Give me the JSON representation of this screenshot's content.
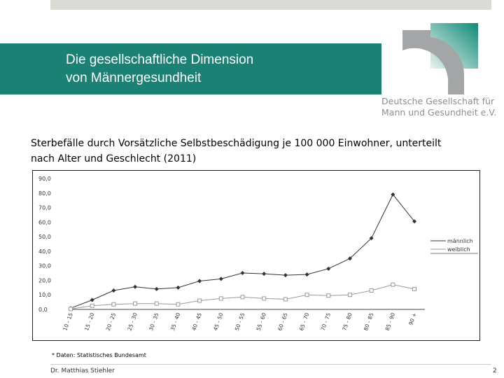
{
  "slide": {
    "title_line1": "Die gesellschaftliche Dimension",
    "title_line2": "von Männergesundheit",
    "org_line1": "Deutsche Gesellschaft für",
    "org_line2": "Mann und Gesundheit e.V.",
    "subtitle": "Sterbefälle durch Vorsätzliche Selbstbeschädigung je 100 000 Einwohner, unterteilt nach Alter und Geschlecht (2011)",
    "source": "* Daten: Statistisches Bundesamt",
    "author": "Dr. Matthias Stiehler",
    "page": "2",
    "colors": {
      "band": "#1b8175",
      "topbar": "#d9dcd5"
    }
  },
  "chart_data": {
    "type": "line",
    "categories": [
      "10 - 15",
      "15 - 20",
      "20 - 25",
      "25 - 30",
      "30 - 35",
      "35 - 40",
      "40 - 45",
      "45 - 50",
      "50 - 55",
      "55 - 60",
      "60 - 65",
      "65 - 70",
      "70 - 75",
      "75 - 80",
      "80 - 85",
      "85 - 90",
      "90 +"
    ],
    "yticks": [
      "0,0",
      "10,0",
      "20,0",
      "30,0",
      "40,0",
      "50,0",
      "60,0",
      "70,0",
      "80,0",
      "90,0"
    ],
    "ylim": [
      0,
      90
    ],
    "legend": "right",
    "grid": false,
    "series": [
      {
        "name": "männlich",
        "color": "#333333",
        "marker": "diamond",
        "values": [
          0.8,
          6.5,
          13,
          15.5,
          14,
          15,
          19.5,
          21,
          25,
          24.5,
          23.5,
          24,
          28,
          35,
          49,
          79,
          60.5
        ]
      },
      {
        "name": "weiblich",
        "color": "#999999",
        "marker": "square",
        "values": [
          0.3,
          2.5,
          3.5,
          4,
          4,
          3.5,
          6,
          7.5,
          8.5,
          7.5,
          7,
          10,
          9.5,
          10,
          13,
          17,
          14
        ]
      }
    ]
  }
}
